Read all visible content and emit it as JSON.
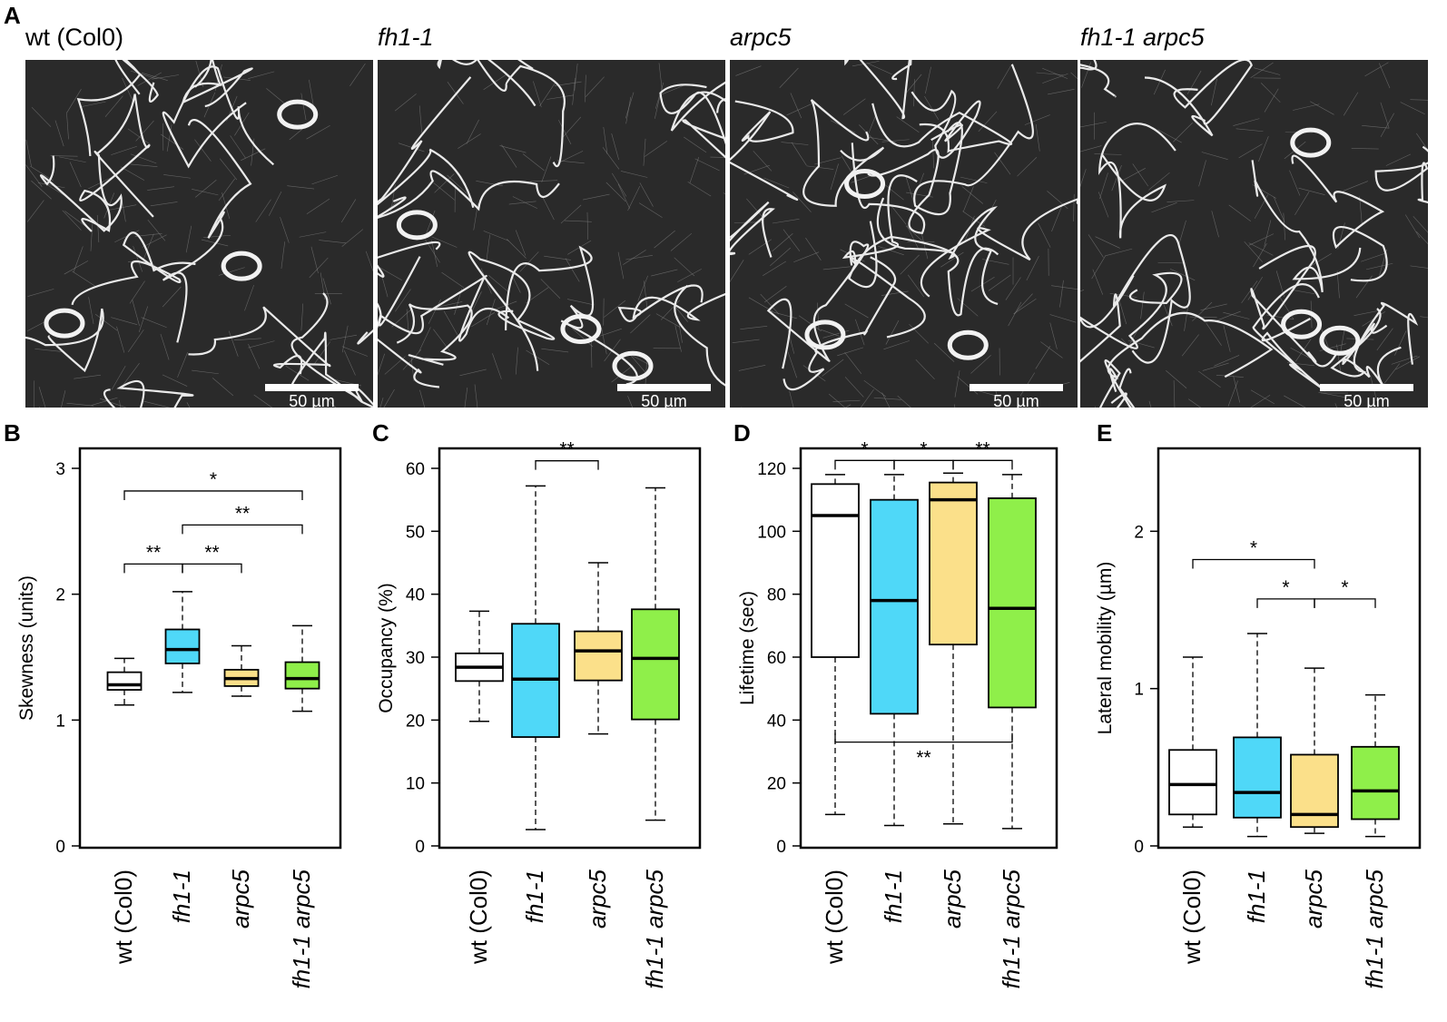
{
  "labels": {
    "A": "A",
    "B": "B",
    "C": "C",
    "D": "D",
    "E": "E"
  },
  "micrographs": [
    {
      "title": "wt (Col0)",
      "italic": false,
      "scale": "50 µm"
    },
    {
      "title": "fh1-1",
      "italic": true,
      "scale": "50 µm"
    },
    {
      "title": "arpc5",
      "italic": true,
      "scale": "50 µm"
    },
    {
      "title": "fh1-1 arpc5",
      "italic": true,
      "scale": "50 µm"
    }
  ],
  "colors": {
    "wt": "#ffffff",
    "fh1": "#4fd8f8",
    "arpc5": "#fbe08a",
    "double": "#8fef4a"
  },
  "chart_data": [
    {
      "type": "box",
      "panel": "B",
      "ylabel": "Skewness (units)",
      "ylim": [
        0,
        3
      ],
      "yticks": [
        0,
        1,
        2,
        3
      ],
      "categories": [
        "wt (Col0)",
        "fh1-1",
        "arpc5",
        "fh1-1 arpc5"
      ],
      "boxes": [
        {
          "min": 1.12,
          "q1": 1.24,
          "median": 1.28,
          "q3": 1.38,
          "max": 1.49
        },
        {
          "min": 1.22,
          "q1": 1.45,
          "median": 1.56,
          "q3": 1.72,
          "max": 2.02
        },
        {
          "min": 1.19,
          "q1": 1.27,
          "median": 1.33,
          "q3": 1.4,
          "max": 1.59
        },
        {
          "min": 1.07,
          "q1": 1.25,
          "median": 1.33,
          "q3": 1.46,
          "max": 1.75
        }
      ],
      "significance": [
        {
          "from": 0,
          "to": 3,
          "label": "*",
          "y": 2.82
        },
        {
          "from": 1,
          "to": 3,
          "label": "**",
          "y": 2.55
        },
        {
          "from": 0,
          "to": 1,
          "label": "**",
          "y": 2.24
        },
        {
          "from": 1,
          "to": 2,
          "label": "**",
          "y": 2.24
        }
      ]
    },
    {
      "type": "box",
      "panel": "C",
      "ylabel": "Occupancy (%)",
      "ylim": [
        0,
        60
      ],
      "yticks": [
        0,
        10,
        20,
        30,
        40,
        50,
        60
      ],
      "categories": [
        "wt (Col0)",
        "fh1-1",
        "arpc5",
        "fh1-1 arpc5"
      ],
      "boxes": [
        {
          "min": 19.8,
          "q1": 26.2,
          "median": 28.4,
          "q3": 30.6,
          "max": 37.3
        },
        {
          "min": 2.6,
          "q1": 17.3,
          "median": 26.5,
          "q3": 35.3,
          "max": 57.2
        },
        {
          "min": 17.8,
          "q1": 26.3,
          "median": 31.0,
          "q3": 34.1,
          "max": 45.0
        },
        {
          "min": 4.1,
          "q1": 20.1,
          "median": 29.8,
          "q3": 37.6,
          "max": 56.9
        }
      ],
      "significance": [
        {
          "from": 1,
          "to": 2,
          "label": "**",
          "y": 61.2
        }
      ]
    },
    {
      "type": "box",
      "panel": "D",
      "ylabel": "Lifetime (sec)",
      "ylim": [
        0,
        120
      ],
      "yticks": [
        0,
        20,
        40,
        60,
        80,
        100,
        120
      ],
      "categories": [
        "wt (Col0)",
        "fh1-1",
        "arpc5",
        "fh1-1 arpc5"
      ],
      "boxes": [
        {
          "min": 10,
          "q1": 60,
          "median": 105,
          "q3": 115,
          "max": 118
        },
        {
          "min": 6.5,
          "q1": 42,
          "median": 78,
          "q3": 110,
          "max": 118
        },
        {
          "min": 7,
          "q1": 64,
          "median": 110,
          "q3": 115.5,
          "max": 118.5
        },
        {
          "min": 5.5,
          "q1": 44,
          "median": 75.5,
          "q3": 110.5,
          "max": 118
        }
      ],
      "significance": [
        {
          "from": 0,
          "to": 1,
          "label": "*",
          "y": 122.5
        },
        {
          "from": 1,
          "to": 2,
          "label": "*",
          "y": 122.5
        },
        {
          "from": 2,
          "to": 3,
          "label": "**",
          "y": 122.5
        },
        {
          "from": 0,
          "to": 3,
          "label": "**",
          "y": 33,
          "below": true
        }
      ]
    },
    {
      "type": "box",
      "panel": "E",
      "ylabel": "Lateral mobility (µm)",
      "ylim": [
        0,
        2.4
      ],
      "yticks": [
        0,
        1,
        2
      ],
      "categories": [
        "wt (Col0)",
        "fh1-1",
        "arpc5",
        "fh1-1 arpc5"
      ],
      "boxes": [
        {
          "min": 0.12,
          "q1": 0.2,
          "median": 0.39,
          "q3": 0.61,
          "max": 1.2
        },
        {
          "min": 0.06,
          "q1": 0.18,
          "median": 0.34,
          "q3": 0.69,
          "max": 1.35
        },
        {
          "min": 0.08,
          "q1": 0.12,
          "median": 0.2,
          "q3": 0.58,
          "max": 1.13
        },
        {
          "min": 0.06,
          "q1": 0.17,
          "median": 0.35,
          "q3": 0.63,
          "max": 0.96
        }
      ],
      "significance": [
        {
          "from": 0,
          "to": 2,
          "label": "*",
          "y": 1.82
        },
        {
          "from": 1,
          "to": 2,
          "label": "*",
          "y": 1.57
        },
        {
          "from": 2,
          "to": 3,
          "label": "*",
          "y": 1.57
        }
      ]
    }
  ]
}
